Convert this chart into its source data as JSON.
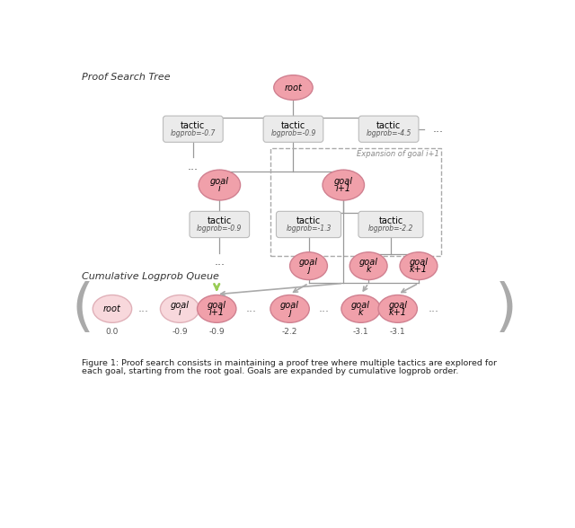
{
  "pink_color": "#f0a0aa",
  "pink_edge": "#d08090",
  "light_pink_color": "#f8d8dc",
  "light_pink_edge": "#e0b0b8",
  "tactic_box_color": "#ebebeb",
  "tactic_box_edge": "#bbbbbb",
  "line_color": "#999999",
  "dashed_box_edge": "#aaaaaa",
  "arrow_green": "#99cc55",
  "arrow_gray": "#aaaaaa",
  "text_dark": "#333333",
  "text_mid": "#555555",
  "bracket_color": "#aaaaaa",
  "title_tree": "Proof Search Tree",
  "title_queue": "Cumulative Logprob Queue",
  "caption_line1": "Figure 1: Proof search consists in maintaining a proof tree where multiple tactics are explored for",
  "caption_line2": "each goal, starting from the root goal. Goals are expanded by cumulative logprob order."
}
